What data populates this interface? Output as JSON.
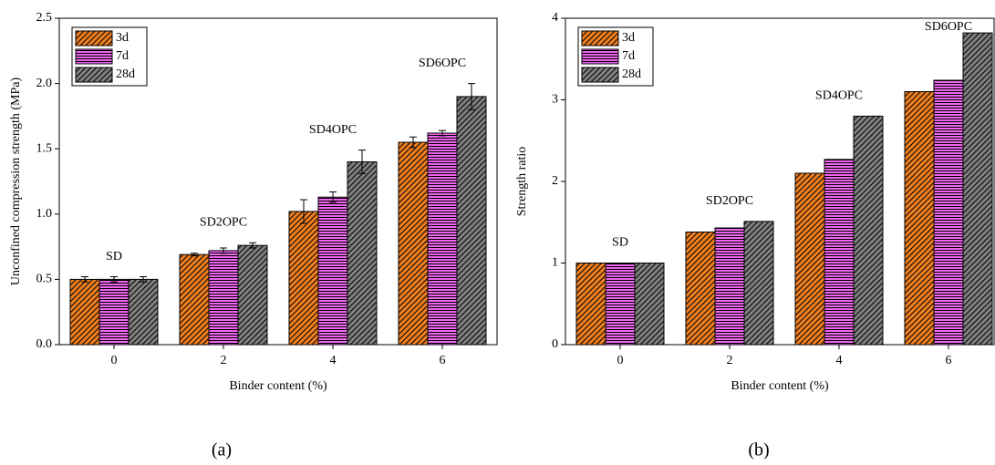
{
  "chart_data": [
    {
      "type": "bar",
      "panel_label": "(a)",
      "x_label": "Binder content (%)",
      "y_label": "Unconfined compression strength (MPa)",
      "categories": [
        "0",
        "2",
        "4",
        "6"
      ],
      "annotations": [
        "SD",
        "SD2OPC",
        "SD4OPC",
        "SD6OPC"
      ],
      "series": [
        {
          "name": "3d",
          "color": "#f07f1f",
          "values": [
            0.5,
            0.69,
            1.02,
            1.55
          ],
          "errors": [
            0.02,
            0.01,
            0.09,
            0.04
          ]
        },
        {
          "name": "7d",
          "color": "#ee66ee",
          "values": [
            0.5,
            0.72,
            1.13,
            1.62
          ],
          "errors": [
            0.02,
            0.02,
            0.04,
            0.02
          ]
        },
        {
          "name": "28d",
          "color": "#808080",
          "values": [
            0.5,
            0.76,
            1.4,
            1.9
          ],
          "errors": [
            0.02,
            0.02,
            0.09,
            0.1
          ]
        }
      ],
      "ylim": [
        0,
        2.5
      ],
      "yticks": [
        {
          "value": 0,
          "label": "0.0"
        },
        0.5,
        {
          "value": 1,
          "label": "1.0"
        },
        1.5,
        {
          "value": 2,
          "label": "2.0"
        },
        2.5
      ],
      "legend": "upper-left"
    },
    {
      "type": "bar",
      "panel_label": "(b)",
      "x_label": "Binder content (%)",
      "y_label": "Strength ratio",
      "categories": [
        "0",
        "2",
        "4",
        "6"
      ],
      "annotations": [
        "SD",
        "SD2OPC",
        "SD4OPC",
        "SD6OPC"
      ],
      "series": [
        {
          "name": "3d",
          "color": "#f07f1f",
          "values": [
            1.0,
            1.38,
            2.1,
            3.1
          ]
        },
        {
          "name": "7d",
          "color": "#ee66ee",
          "values": [
            1.0,
            1.43,
            2.27,
            3.24
          ]
        },
        {
          "name": "28d",
          "color": "#808080",
          "values": [
            1.0,
            1.51,
            2.8,
            3.82
          ]
        }
      ],
      "ylim": [
        0,
        4
      ],
      "yticks": [
        0,
        1,
        2,
        3,
        4
      ],
      "legend": "upper-left"
    }
  ]
}
